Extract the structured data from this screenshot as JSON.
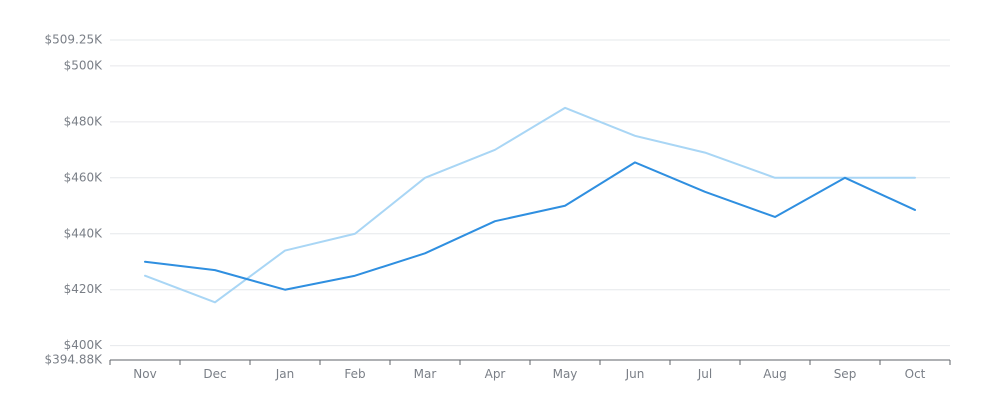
{
  "chart_data": {
    "type": "line",
    "title": "",
    "xlabel": "",
    "ylabel": "",
    "categories": [
      "Nov",
      "Dec",
      "Jan",
      "Feb",
      "Mar",
      "Apr",
      "May",
      "Jun",
      "Jul",
      "Aug",
      "Sep",
      "Oct"
    ],
    "ylim": [
      394880,
      509250
    ],
    "yticks": [
      394880,
      400000,
      420000,
      440000,
      460000,
      480000,
      500000,
      509250
    ],
    "ytick_labels": [
      "$394.88K",
      "$400K",
      "$420K",
      "$440K",
      "$460K",
      "$480K",
      "$500K",
      "$509.25K"
    ],
    "grid": true,
    "legend": "none",
    "series": [
      {
        "color": "#a9d6f5",
        "values": [
          425000,
          415500,
          434000,
          440000,
          460000,
          470000,
          485000,
          475000,
          469000,
          460000,
          460000,
          460000
        ]
      },
      {
        "color": "#2f8fe0",
        "values": [
          430000,
          427000,
          420000,
          425000,
          433000,
          444500,
          450000,
          465500,
          455000,
          446000,
          460000,
          448500
        ]
      }
    ]
  }
}
